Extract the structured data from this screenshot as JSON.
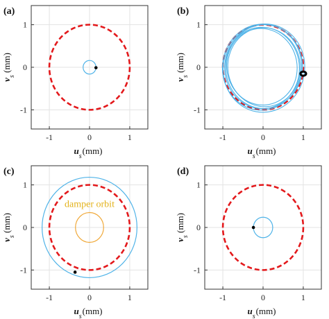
{
  "chart_data": [
    {
      "panel": "(a)",
      "type": "line",
      "xlabel": "us(mm)",
      "ylabel": "vs (mm)",
      "xlim": [
        -1.45,
        1.45
      ],
      "ylim": [
        -1.45,
        1.45
      ],
      "xticks": [
        -1,
        0,
        1
      ],
      "yticks": [
        -1,
        0,
        1
      ],
      "grid": true,
      "series": [
        {
          "kind": "dashed-circle",
          "color": "#e3191c",
          "center": [
            0,
            0
          ],
          "radius": 1.0
        },
        {
          "kind": "orbit",
          "color": "#4fb3e8",
          "center": [
            0.0,
            0.0
          ],
          "radius": 0.16
        },
        {
          "kind": "point",
          "color": "#000000",
          "x": 0.16,
          "y": -0.01
        }
      ]
    },
    {
      "panel": "(b)",
      "type": "line",
      "xlabel": "us(mm)",
      "ylabel": "vs (mm)",
      "xlim": [
        -1.45,
        1.45
      ],
      "ylim": [
        -1.45,
        1.45
      ],
      "xticks": [
        -1,
        0,
        1
      ],
      "yticks": [
        -1,
        0,
        1
      ],
      "grid": true,
      "series": [
        {
          "kind": "dashed-circle",
          "color": "#e3191c",
          "center": [
            0,
            0
          ],
          "radius": 1.0
        },
        {
          "kind": "orbit-band",
          "color": "#4fb3e8",
          "center": [
            0,
            0
          ],
          "rx": [
            0.95,
            0.98,
            1.01,
            1.04,
            1.07,
            1.1
          ],
          "ry": [
            0.98,
            1.01,
            1.04,
            1.07,
            1.1,
            1.13
          ]
        },
        {
          "kind": "ring",
          "color": "#000000",
          "x": 1.0,
          "y": -0.15,
          "r": 0.07
        }
      ]
    },
    {
      "panel": "(c)",
      "type": "line",
      "xlabel": "us(mm)",
      "ylabel": "vs (mm)",
      "xlim": [
        -1.45,
        1.45
      ],
      "ylim": [
        -1.45,
        1.45
      ],
      "xticks": [
        -1,
        0,
        1
      ],
      "yticks": [
        -1,
        0,
        1
      ],
      "grid": true,
      "annotation": "damper orbit",
      "series": [
        {
          "kind": "dashed-circle",
          "color": "#e3191c",
          "center": [
            0,
            0
          ],
          "radius": 1.0
        },
        {
          "kind": "orbit",
          "color": "#4fb3e8",
          "center": [
            0,
            0
          ],
          "radius": 1.18
        },
        {
          "kind": "orbit",
          "color": "#f0a93a",
          "center": [
            0,
            0
          ],
          "radius": 0.35
        },
        {
          "kind": "point",
          "color": "#000000",
          "x": -0.36,
          "y": -1.05
        }
      ]
    },
    {
      "panel": "(d)",
      "type": "line",
      "xlabel": "us(mm)",
      "ylabel": "vs (mm)",
      "xlim": [
        -1.45,
        1.45
      ],
      "ylim": [
        -1.45,
        1.45
      ],
      "xticks": [
        -1,
        0,
        1
      ],
      "yticks": [
        -1,
        0,
        1
      ],
      "grid": true,
      "series": [
        {
          "kind": "dashed-circle",
          "color": "#e3191c",
          "center": [
            0,
            0
          ],
          "radius": 1.0
        },
        {
          "kind": "orbit",
          "color": "#4fb3e8",
          "center": [
            0.0,
            0.0
          ],
          "radius": 0.24
        },
        {
          "kind": "point",
          "color": "#000000",
          "x": -0.24,
          "y": 0.0
        }
      ]
    }
  ]
}
